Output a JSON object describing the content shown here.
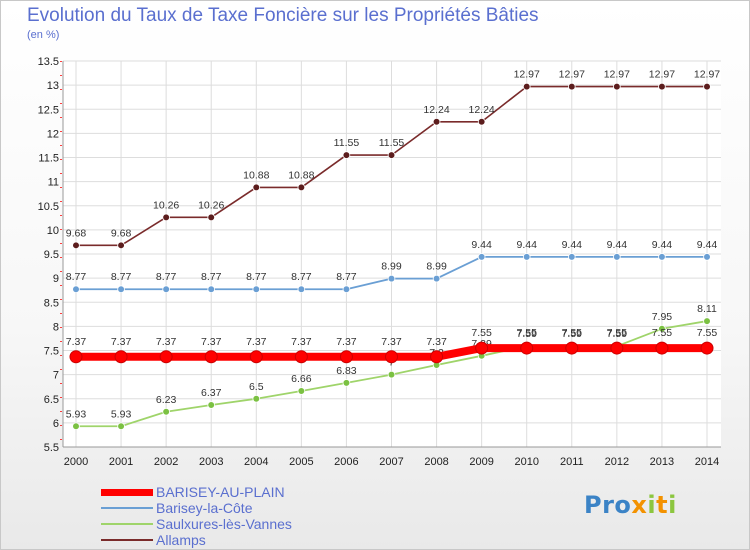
{
  "header": {
    "title": "Evolution du Taux de Taxe Foncière sur les Propriétés Bâties",
    "unit": "(en %)"
  },
  "logo": {
    "text": "Proxiti"
  },
  "colors": {
    "barisey_au_plain": "#ff0000",
    "barisey_la_cote": "#6a9fd4",
    "saulxures": "#9fd46a",
    "allamps": "#7a2b2b",
    "saulxures_marker": "#7bc142",
    "allamps_marker": "#5c1d1d"
  },
  "chart_data": {
    "type": "line",
    "title": "Evolution du Taux de Taxe Foncière sur les Propriétés Bâties",
    "ylabel": "(en %)",
    "xlabel": "",
    "x": [
      "2000",
      "2001",
      "2002",
      "2003",
      "2004",
      "2005",
      "2006",
      "2007",
      "2008",
      "2009",
      "2010",
      "2011",
      "2012",
      "2013",
      "2014"
    ],
    "ylim": [
      5.5,
      13.5
    ],
    "yticks": [
      "5.5",
      "6",
      "6.5",
      "7",
      "7.5",
      "8",
      "8.5",
      "9",
      "9.5",
      "10",
      "10.5",
      "11",
      "11.5",
      "12",
      "12.5",
      "13",
      "13.5"
    ],
    "grid": true,
    "legend_position": "bottom-left",
    "series": [
      {
        "name": "BARISEY-AU-PLAIN",
        "values": [
          7.37,
          7.37,
          7.37,
          7.37,
          7.37,
          7.37,
          7.37,
          7.37,
          7.37,
          7.55,
          7.55,
          7.55,
          7.55,
          7.55,
          7.55
        ],
        "labels": [
          "7.37",
          "7.37",
          "7.37",
          "7.37",
          "7.37",
          "7.37",
          "7.37",
          "7.37",
          "7.37",
          "7.55",
          "7.55",
          "7.55",
          "7.55",
          "7.55",
          "7.55"
        ]
      },
      {
        "name": "Barisey-la-Côte",
        "values": [
          8.77,
          8.77,
          8.77,
          8.77,
          8.77,
          8.77,
          8.77,
          8.99,
          8.99,
          9.44,
          9.44,
          9.44,
          9.44,
          9.44,
          9.44
        ],
        "labels": [
          "8.77",
          "8.77",
          "8.77",
          "8.77",
          "8.77",
          "8.77",
          "8.77",
          "8.99",
          "8.99",
          "9.44",
          "9.44",
          "9.44",
          "9.44",
          "9.44",
          "9.44"
        ]
      },
      {
        "name": "Saulxures-lès-Vannes",
        "values": [
          5.93,
          5.93,
          6.23,
          6.37,
          6.5,
          6.66,
          6.83,
          7.0,
          7.2,
          7.39,
          7.59,
          7.59,
          7.59,
          7.95,
          8.11
        ],
        "labels": [
          "5.93",
          "5.93",
          "6.23",
          "6.37",
          "6.5",
          "6.66",
          "6.83",
          "7",
          "7.2",
          "7.39",
          "7.59",
          "7.59",
          "7.59",
          "7.95",
          "8.11"
        ]
      },
      {
        "name": "Allamps",
        "values": [
          9.68,
          9.68,
          10.26,
          10.26,
          10.88,
          10.88,
          11.55,
          11.55,
          12.24,
          12.24,
          12.97,
          12.97,
          12.97,
          12.97,
          12.97
        ],
        "labels": [
          "9.68",
          "9.68",
          "10.26",
          "10.26",
          "10.88",
          "10.88",
          "11.55",
          "11.55",
          "12.24",
          "12.24",
          "12.97",
          "12.97",
          "12.97",
          "12.97",
          "12.97"
        ]
      }
    ]
  }
}
